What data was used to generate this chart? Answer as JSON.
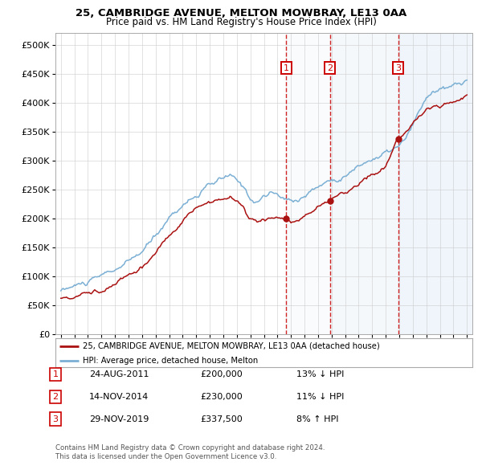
{
  "title1": "25, CAMBRIDGE AVENUE, MELTON MOWBRAY, LE13 0AA",
  "title2": "Price paid vs. HM Land Registry's House Price Index (HPI)",
  "ylim": [
    0,
    520000
  ],
  "yticks": [
    0,
    50000,
    100000,
    150000,
    200000,
    250000,
    300000,
    350000,
    400000,
    450000,
    500000
  ],
  "sale_dates": [
    "24-AUG-2011",
    "14-NOV-2014",
    "29-NOV-2019"
  ],
  "sale_prices": [
    200000,
    230000,
    337500
  ],
  "sale_labels": [
    "1",
    "2",
    "3"
  ],
  "sale_pct": [
    "13% ↓ HPI",
    "11% ↓ HPI",
    "8% ↑ HPI"
  ],
  "sale_prices_str": [
    "£200,000",
    "£230,000",
    "£337,500"
  ],
  "hpi_line_color": "#7bafd4",
  "sale_line_color": "#aa1111",
  "marker_color": "#aa1111",
  "vline_color": "#cc0000",
  "bg_highlight": "#d8e8f5",
  "legend_box_text1": "25, CAMBRIDGE AVENUE, MELTON MOWBRAY, LE13 0AA (detached house)",
  "legend_box_text2": "HPI: Average price, detached house, Melton",
  "footer1": "Contains HM Land Registry data © Crown copyright and database right 2024.",
  "footer2": "This data is licensed under the Open Government Licence v3.0.",
  "number_label_color": "#cc0000",
  "x_start_year": 1995,
  "x_end_year": 2025
}
